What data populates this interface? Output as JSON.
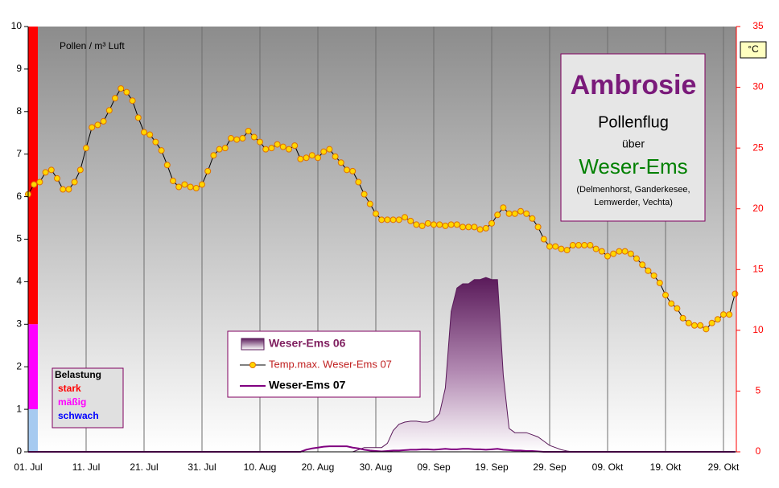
{
  "chart_data": {
    "type": "line",
    "y_label": "Pollen / m³ Luft",
    "y2_label": "°C",
    "info": {
      "title": "Ambrosie",
      "line1": "Pollenflug",
      "line2": "über",
      "region": "Weser-Ems",
      "places": [
        "(Delmenhorst, Ganderkesee,",
        "Lemwerder, Vechta)"
      ]
    },
    "belastung": {
      "title": "Belastung",
      "levels": [
        {
          "label": "stark",
          "color": "#ff0000",
          "text_color": "#ff0000",
          "from": 3,
          "to": 10
        },
        {
          "label": "mäßig",
          "color": "#ff00ff",
          "text_color": "#ff00ff",
          "from": 1,
          "to": 3
        },
        {
          "label": "schwach",
          "color": "#a6caf0",
          "text_color": "#0000ff",
          "from": 0,
          "to": 1
        }
      ]
    },
    "ylim": [
      0,
      10
    ],
    "yticks": [
      0,
      1,
      2,
      3,
      4,
      5,
      6,
      7,
      8,
      9,
      10
    ],
    "y2lim": [
      0,
      35
    ],
    "y2ticks": [
      0,
      5,
      10,
      15,
      20,
      25,
      30,
      35
    ],
    "y2_color": "#ff0000",
    "grid": true,
    "categories": [
      "01. Jul",
      null,
      null,
      null,
      null,
      null,
      null,
      null,
      null,
      null,
      "11. Jul",
      null,
      null,
      null,
      null,
      null,
      null,
      null,
      null,
      null,
      "21. Jul",
      null,
      null,
      null,
      null,
      null,
      null,
      null,
      null,
      null,
      "31. Jul",
      null,
      null,
      null,
      null,
      null,
      null,
      null,
      null,
      null,
      "10. Aug",
      null,
      null,
      null,
      null,
      null,
      null,
      null,
      null,
      null,
      "20. Aug",
      null,
      null,
      null,
      null,
      null,
      null,
      null,
      null,
      null,
      "30. Aug",
      null,
      null,
      null,
      null,
      null,
      null,
      null,
      null,
      null,
      "09. Sep",
      null,
      null,
      null,
      null,
      null,
      null,
      null,
      null,
      null,
      "19. Sep",
      null,
      null,
      null,
      null,
      null,
      null,
      null,
      null,
      null,
      "29. Sep",
      null,
      null,
      null,
      null,
      null,
      null,
      null,
      null,
      null,
      "09. Okt",
      null,
      null,
      null,
      null,
      null,
      null,
      null,
      null,
      null,
      "19. Okt",
      null,
      null,
      null,
      null,
      null,
      null,
      null,
      null,
      null,
      "29. Okt",
      null,
      null
    ],
    "series": [
      {
        "name": "Weser-Ems 06",
        "type": "area",
        "color": "#5a1a5a",
        "text_color": "#802060",
        "values": [
          0,
          0,
          0,
          0,
          0,
          0,
          0,
          0,
          0,
          0,
          0,
          0,
          0,
          0,
          0,
          0,
          0,
          0,
          0,
          0,
          0,
          0,
          0,
          0,
          0,
          0,
          0,
          0,
          0,
          0,
          0,
          0,
          0,
          0,
          0,
          0,
          0,
          0,
          0,
          0,
          0,
          0,
          0,
          0,
          0,
          0,
          0,
          0,
          0,
          0,
          0,
          0,
          0,
          0,
          0,
          0,
          0,
          0.05,
          0.1,
          0.1,
          0.1,
          0.1,
          0.2,
          0.5,
          0.65,
          0.7,
          0.72,
          0.72,
          0.7,
          0.7,
          0.75,
          0.9,
          1.5,
          3.3,
          3.85,
          3.95,
          3.95,
          4.05,
          4.05,
          4.1,
          4.05,
          4.05,
          1.8,
          0.55,
          0.45,
          0.45,
          0.45,
          0.4,
          0.35,
          0.25,
          0.15,
          0.1,
          0.05,
          0.02,
          0,
          0,
          0,
          0,
          0,
          0,
          0,
          0,
          0,
          0,
          0,
          0,
          0,
          0,
          0,
          0,
          0,
          0,
          0,
          0,
          0,
          0,
          0,
          0,
          0,
          0,
          0,
          0,
          0
        ]
      },
      {
        "name": "Temp.max. Weser-Ems 07",
        "type": "line",
        "axis": "y2",
        "color": "#000000",
        "marker_color": "#ffd700",
        "text_color": "#c02020",
        "values": [
          21.2,
          22.0,
          22.2,
          23.0,
          23.2,
          22.5,
          21.6,
          21.6,
          22.2,
          23.2,
          25.0,
          26.7,
          26.9,
          27.2,
          28.1,
          29.1,
          29.9,
          29.6,
          28.9,
          27.5,
          26.3,
          26.1,
          25.5,
          24.8,
          23.6,
          22.3,
          21.8,
          22.0,
          21.8,
          21.7,
          22.0,
          23.1,
          24.4,
          24.9,
          25.0,
          25.8,
          25.7,
          25.8,
          26.4,
          25.9,
          25.5,
          24.9,
          25.0,
          25.3,
          25.1,
          24.9,
          25.2,
          24.1,
          24.2,
          24.4,
          24.2,
          24.7,
          24.9,
          24.3,
          23.8,
          23.2,
          23.1,
          22.2,
          21.2,
          20.4,
          19.6,
          19.1,
          19.1,
          19.1,
          19.1,
          19.3,
          19.0,
          18.7,
          18.6,
          18.8,
          18.7,
          18.7,
          18.6,
          18.7,
          18.7,
          18.5,
          18.5,
          18.5,
          18.3,
          18.4,
          18.8,
          19.5,
          20.1,
          19.6,
          19.6,
          19.8,
          19.6,
          19.2,
          18.5,
          17.5,
          16.9,
          16.9,
          16.7,
          16.6,
          17.0,
          17.0,
          17.0,
          17.0,
          16.7,
          16.5,
          16.1,
          16.3,
          16.5,
          16.5,
          16.3,
          15.9,
          15.4,
          14.9,
          14.5,
          13.9,
          12.9,
          12.2,
          11.8,
          11.0,
          10.6,
          10.4,
          10.4,
          10.1,
          10.6,
          10.9,
          11.3,
          11.3,
          13.0
        ]
      },
      {
        "name": "Weser-Ems 07",
        "type": "line",
        "color": "#800080",
        "text_color": "#000000",
        "values": [
          0,
          0,
          0,
          0,
          0,
          0,
          0,
          0,
          0,
          0,
          0,
          0,
          0,
          0,
          0,
          0,
          0,
          0,
          0,
          0,
          0,
          0,
          0,
          0,
          0,
          0,
          0,
          0,
          0,
          0,
          0,
          0,
          0,
          0,
          0,
          0,
          0,
          0,
          0,
          0,
          0,
          0,
          0,
          0,
          0,
          0,
          0,
          0,
          0.05,
          0.08,
          0.1,
          0.12,
          0.13,
          0.13,
          0.13,
          0.13,
          0.1,
          0.08,
          0.05,
          0.03,
          0.02,
          0.01,
          0.02,
          0.03,
          0.03,
          0.04,
          0.05,
          0.05,
          0.06,
          0.06,
          0.05,
          0.06,
          0.07,
          0.06,
          0.06,
          0.07,
          0.07,
          0.06,
          0.06,
          0.05,
          0.06,
          0.07,
          0.05,
          0.04,
          0.03,
          0.03,
          0.02,
          0.02,
          0.01,
          0,
          0,
          0,
          0,
          0,
          0,
          0,
          0,
          0,
          0,
          0,
          0,
          0,
          0,
          0,
          0,
          0,
          0,
          0,
          0,
          0,
          0,
          0,
          0,
          0,
          0,
          0,
          0,
          0,
          0,
          0,
          0,
          0,
          0
        ]
      }
    ]
  }
}
